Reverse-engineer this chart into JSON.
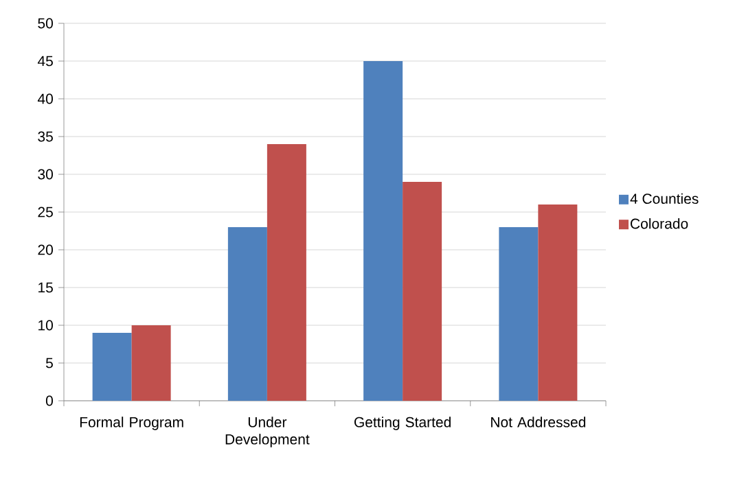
{
  "chart_data": {
    "type": "bar",
    "categories": [
      "Formal Program",
      "Under Development",
      "Getting Started",
      "Not Addressed"
    ],
    "series": [
      {
        "name": "4 Counties",
        "color": "#4f81bd",
        "values": [
          9,
          23,
          45,
          23
        ]
      },
      {
        "name": "Colorado",
        "color": "#c0504d",
        "values": [
          10,
          34,
          29,
          26
        ]
      }
    ],
    "ylim": [
      0,
      50
    ],
    "yticks": [
      0,
      5,
      10,
      15,
      20,
      25,
      30,
      35,
      40,
      45,
      50
    ],
    "grid": "y",
    "legend": "right"
  }
}
